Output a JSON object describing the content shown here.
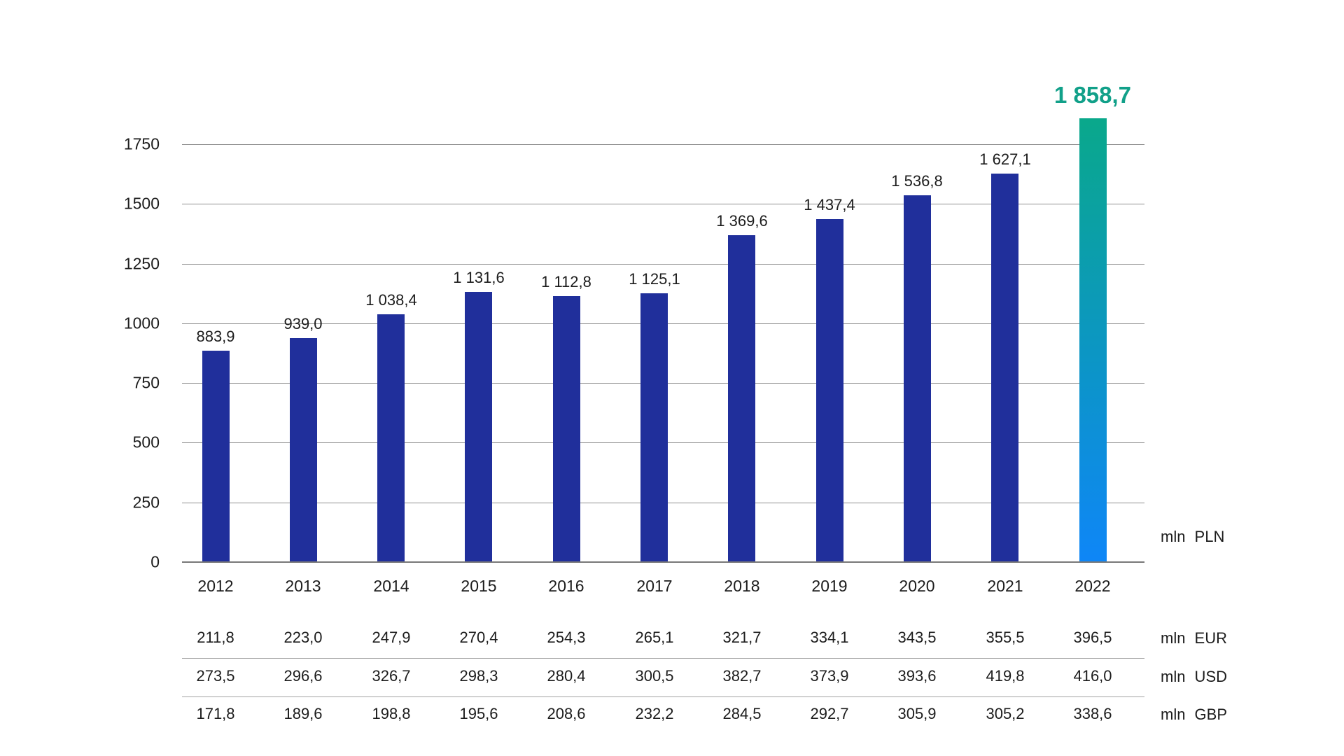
{
  "chart_data": {
    "type": "bar",
    "title": "",
    "xlabel": "",
    "ylabel": "",
    "unit_label": "mln PLN",
    "categories": [
      "2012",
      "2013",
      "2014",
      "2015",
      "2016",
      "2017",
      "2018",
      "2019",
      "2020",
      "2021",
      "2022"
    ],
    "series": [
      {
        "name": "mln PLN",
        "values": [
          883.9,
          939.0,
          1038.4,
          1131.6,
          1112.8,
          1125.1,
          1369.6,
          1437.4,
          1536.8,
          1627.1,
          1858.7
        ],
        "labels": [
          "883,9",
          "939,0",
          "1 038,4",
          "1 131,6",
          "1 112,8",
          "1 125,1",
          "1 369,6",
          "1 437,4",
          "1 536,8",
          "1 627,1",
          "1 858,7"
        ]
      }
    ],
    "highlight_index": 10,
    "y_ticks": [
      0,
      250,
      500,
      750,
      1000,
      1250,
      1500,
      1750
    ],
    "ylim": [
      0,
      1858.7
    ],
    "grid": true,
    "legend_position": "none",
    "colors": {
      "bar": "#202f9b",
      "highlight_gradient_top": "#0aa88b",
      "highlight_gradient_bottom": "#0e86f7",
      "highlight_label": "#11a089",
      "gridline": "#8f8f8f",
      "text": "#1c1c1c"
    }
  },
  "table": {
    "rows": [
      {
        "unit": "mln EUR",
        "values": [
          "211,8",
          "223,0",
          "247,9",
          "270,4",
          "254,3",
          "265,1",
          "321,7",
          "334,1",
          "343,5",
          "355,5",
          "396,5"
        ]
      },
      {
        "unit": "mln USD",
        "values": [
          "273,5",
          "296,6",
          "326,7",
          "298,3",
          "280,4",
          "300,5",
          "382,7",
          "373,9",
          "393,6",
          "419,8",
          "416,0"
        ]
      },
      {
        "unit": "mln GBP",
        "values": [
          "171,8",
          "189,6",
          "198,8",
          "195,6",
          "208,6",
          "232,2",
          "284,5",
          "292,7",
          "305,9",
          "305,2",
          "338,6"
        ]
      }
    ]
  }
}
